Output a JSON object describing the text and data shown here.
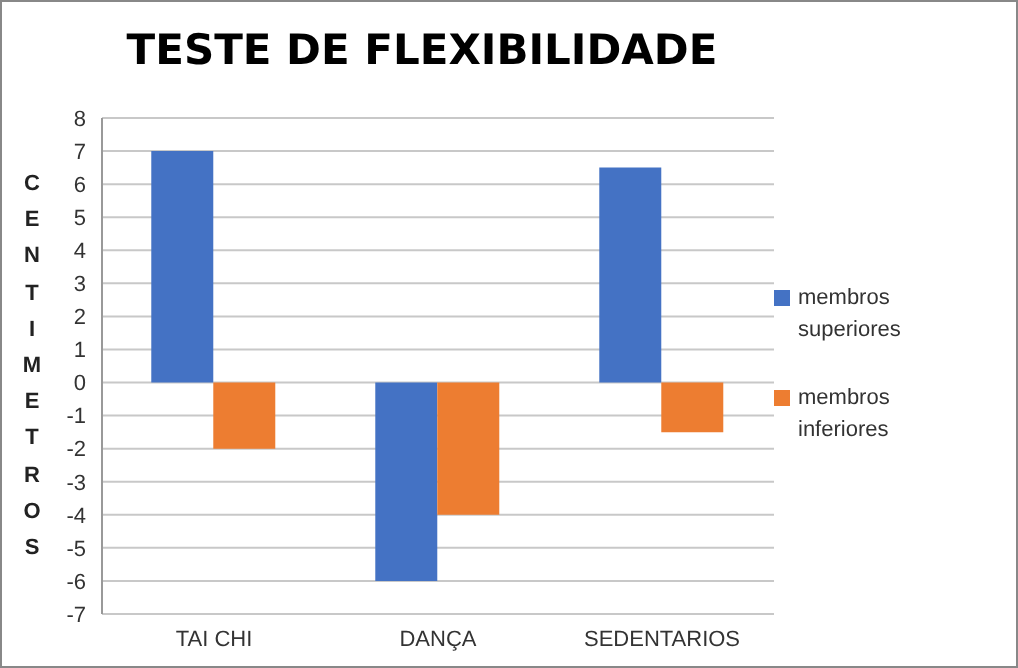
{
  "chart_data": {
    "type": "bar",
    "title": "TESTE DE FLEXIBILIDADE",
    "ylabel": "CENTIMETROS",
    "categories": [
      "TAI CHI",
      "DANÇA",
      "SEDENTARIOS"
    ],
    "series": [
      {
        "name": "membros superiores",
        "color": "#4472c4",
        "values": [
          7,
          -6,
          6.5
        ]
      },
      {
        "name": "membros inferiores",
        "color": "#ed7d31",
        "values": [
          -2,
          -4,
          -1.5
        ]
      }
    ],
    "ylim": [
      -7,
      8
    ],
    "yticks": [
      -7,
      -6,
      -5,
      -4,
      -3,
      -2,
      -1,
      0,
      1,
      2,
      3,
      4,
      5,
      6,
      7,
      8
    ],
    "grid": "y",
    "legend": "right"
  }
}
